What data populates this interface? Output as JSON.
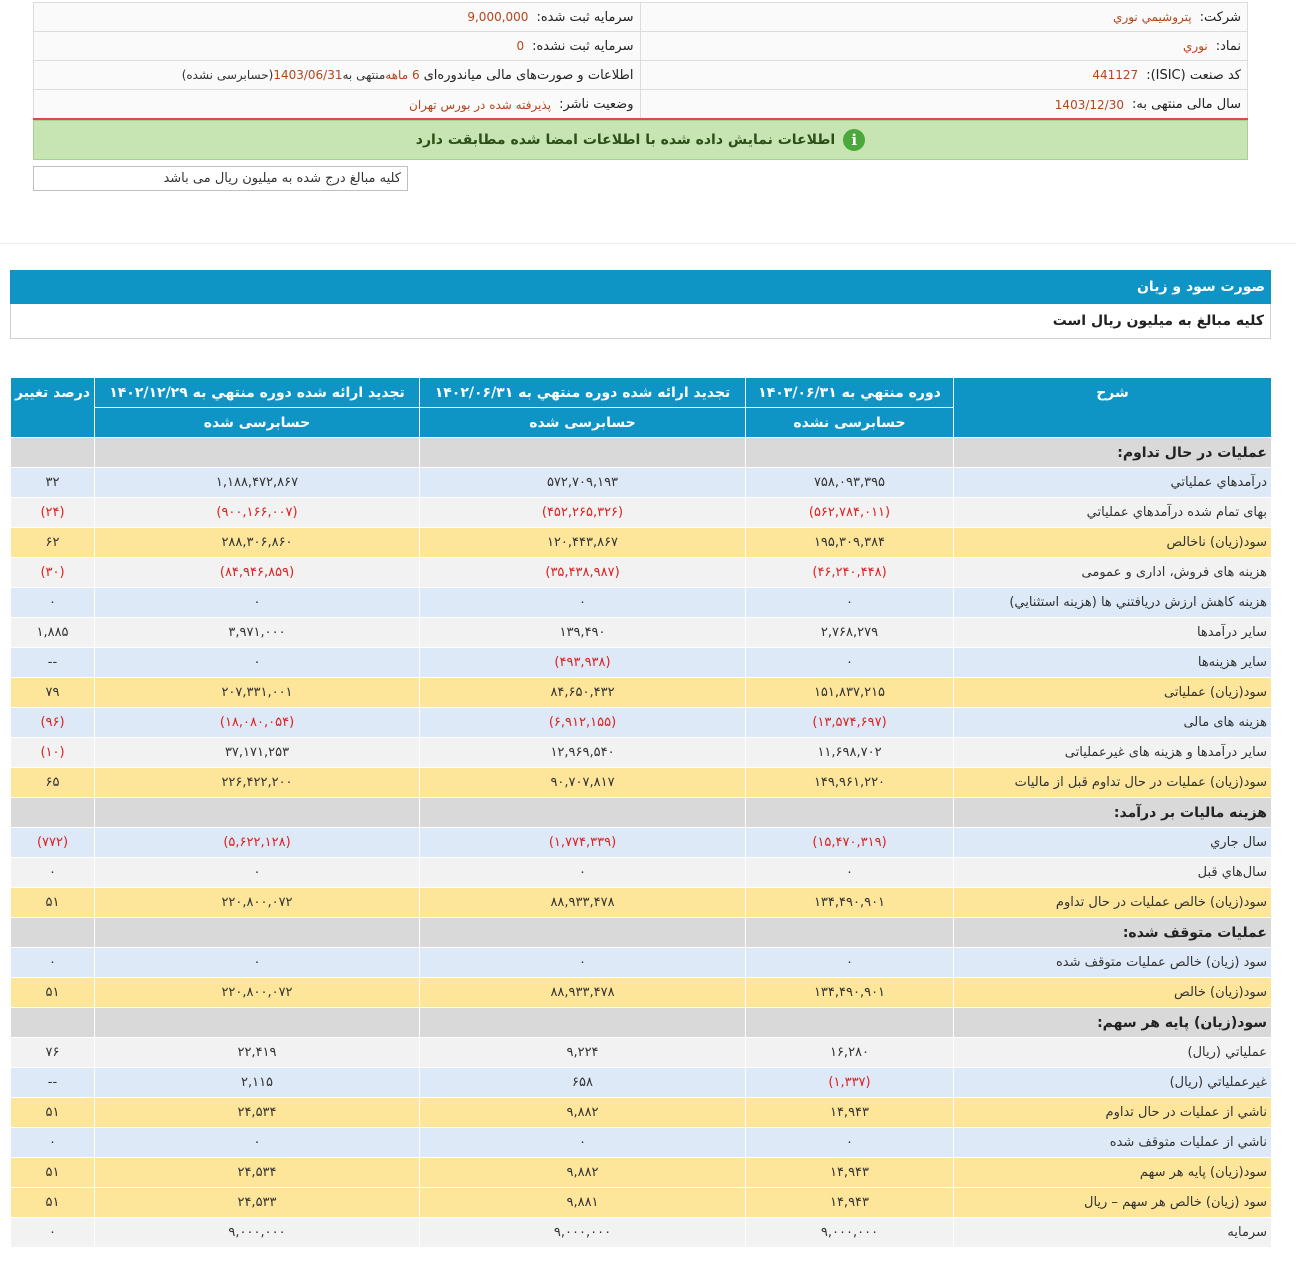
{
  "company": {
    "name_label": "شرکت:",
    "name_value": "پتروشيمي نوري",
    "capital_label": "سرمایه ثبت شده:",
    "capital_value": "9,000,000",
    "symbol_label": "نماد:",
    "symbol_value": "نوري",
    "unreg_capital_label": "سرمایه ثبت نشده:",
    "unreg_capital_value": "0",
    "isic_label": "کد صنعت (ISIC):",
    "isic_value": "441127",
    "report_desc_label": "اطلاعات و صورت‌های مالی میاندوره‌ای",
    "report_period": "6 ماهه",
    "report_end_prefix": "منتهی به",
    "report_end_date": "1403/06/31",
    "report_status": "(حسابرسی نشده)",
    "fiscal_year_label": "سال مالی منتهی به:",
    "fiscal_year_value": "1403/12/30",
    "publisher_status_label": "وضعیت ناشر:",
    "publisher_status_value": "پذیرفته شده در بورس تهران"
  },
  "banner": {
    "text": "اطلاعات نمایش داده شده با اطلاعات امضا شده مطابقت دارد",
    "icon": "info-icon"
  },
  "unit_note": "کلیه مبالغ درج شده به میلیون ریال می باشد",
  "section": {
    "title": "صورت سود و زیان",
    "subtitle": "کلیه مبالغ به میلیون ریال است"
  },
  "table": {
    "headers": {
      "desc": "شرح",
      "p1": "دوره منتهي به ۱۴۰۳/۰۶/۳۱",
      "p2": "تجدید ارائه شده دوره منتهي به ۱۴۰۲/۰۶/۳۱",
      "p3": "تجدید ارائه شده دوره منتهي به ۱۴۰۲/۱۲/۲۹",
      "pct": "درصد تغییر",
      "p1_sub": "حسابرسی نشده",
      "p2_sub": "حسابرسی شده",
      "p3_sub": "حسابرسی شده"
    },
    "rows": [
      {
        "desc": "عملیات در حال تداوم:",
        "p1": "",
        "p2": "",
        "p3": "",
        "pct": "",
        "style": "grey"
      },
      {
        "desc": "درآمدهاي عملياتي",
        "p1": "۷۵۸,۰۹۳,۳۹۵",
        "p2": "۵۷۲,۷۰۹,۱۹۳",
        "p3": "۱,۱۸۸,۴۷۲,۸۶۷",
        "pct": "۳۲",
        "style": "blue"
      },
      {
        "desc": "بهاى تمام شده درآمدهاي عملياتي",
        "p1": "(۵۶۲,۷۸۴,۰۱۱)",
        "p2": "(۴۵۲,۲۶۵,۳۲۶)",
        "p3": "(۹۰۰,۱۶۶,۰۰۷)",
        "pct": "(۲۴)",
        "style": "light",
        "neg": true
      },
      {
        "desc": "سود(زيان) ناخالص",
        "p1": "۱۹۵,۳۰۹,۳۸۴",
        "p2": "۱۲۰,۴۴۳,۸۶۷",
        "p3": "۲۸۸,۳۰۶,۸۶۰",
        "pct": "۶۲",
        "style": "yellow"
      },
      {
        "desc": "هزينه هاى فروش، ادارى و عمومى",
        "p1": "(۴۶,۲۴۰,۴۴۸)",
        "p2": "(۳۵,۴۳۸,۹۸۷)",
        "p3": "(۸۴,۹۴۶,۸۵۹)",
        "pct": "(۳۰)",
        "style": "light",
        "neg": true
      },
      {
        "desc": "هزینه کاهش ارزش دریافتني ها (هزينه استثنايي)",
        "p1": "۰",
        "p2": "۰",
        "p3": "۰",
        "pct": "۰",
        "style": "blue"
      },
      {
        "desc": "ساير درآمدها",
        "p1": "۲,۷۶۸,۲۷۹",
        "p2": "۱۳۹,۴۹۰",
        "p3": "۳,۹۷۱,۰۰۰",
        "pct": "۱,۸۸۵",
        "style": "light"
      },
      {
        "desc": "سایر هزینه‌ها",
        "p1": "۰",
        "p2": "(۴۹۳,۹۳۸)",
        "p3": "۰",
        "pct": "--",
        "style": "blue",
        "neg_cols": [
          "p2"
        ]
      },
      {
        "desc": "سود(زيان) عملياتى",
        "p1": "۱۵۱,۸۳۷,۲۱۵",
        "p2": "۸۴,۶۵۰,۴۳۲",
        "p3": "۲۰۷,۳۳۱,۰۰۱",
        "pct": "۷۹",
        "style": "yellow"
      },
      {
        "desc": "هزينه هاى مالى",
        "p1": "(۱۳,۵۷۴,۶۹۷)",
        "p2": "(۶,۹۱۲,۱۵۵)",
        "p3": "(۱۸,۰۸۰,۰۵۴)",
        "pct": "(۹۶)",
        "style": "blue",
        "neg": true
      },
      {
        "desc": "ساير درآمدها و هزينه هاى غيرعملياتى",
        "p1": "۱۱,۶۹۸,۷۰۲",
        "p2": "۱۲,۹۶۹,۵۴۰",
        "p3": "۳۷,۱۷۱,۲۵۳",
        "pct": "(۱۰)",
        "style": "light",
        "neg_cols": [
          "pct"
        ]
      },
      {
        "desc": "سود(زيان) عمليات در حال تداوم قبل از ماليات",
        "p1": "۱۴۹,۹۶۱,۲۲۰",
        "p2": "۹۰,۷۰۷,۸۱۷",
        "p3": "۲۲۶,۴۲۲,۲۰۰",
        "pct": "۶۵",
        "style": "yellow"
      },
      {
        "desc": "هزينه ماليات بر درآمد:",
        "p1": "",
        "p2": "",
        "p3": "",
        "pct": "",
        "style": "grey"
      },
      {
        "desc": "سال جاري",
        "p1": "(۱۵,۴۷۰,۳۱۹)",
        "p2": "(۱,۷۷۴,۳۳۹)",
        "p3": "(۵,۶۲۲,۱۲۸)",
        "pct": "(۷۷۲)",
        "style": "blue",
        "neg": true
      },
      {
        "desc": "سال‌هاي قبل",
        "p1": "۰",
        "p2": "۰",
        "p3": "۰",
        "pct": "۰",
        "style": "light"
      },
      {
        "desc": "سود(زيان) خالص عمليات در حال تداوم",
        "p1": "۱۳۴,۴۹۰,۹۰۱",
        "p2": "۸۸,۹۳۳,۴۷۸",
        "p3": "۲۲۰,۸۰۰,۰۷۲",
        "pct": "۵۱",
        "style": "yellow"
      },
      {
        "desc": "عمليات متوقف شده:",
        "p1": "",
        "p2": "",
        "p3": "",
        "pct": "",
        "style": "grey"
      },
      {
        "desc": "سود (زيان) خالص عمليات متوقف شده",
        "p1": "۰",
        "p2": "۰",
        "p3": "۰",
        "pct": "۰",
        "style": "blue"
      },
      {
        "desc": "سود(زيان) خالص",
        "p1": "۱۳۴,۴۹۰,۹۰۱",
        "p2": "۸۸,۹۳۳,۴۷۸",
        "p3": "۲۲۰,۸۰۰,۰۷۲",
        "pct": "۵۱",
        "style": "yellow"
      },
      {
        "desc": "سود(زيان) پايه هر سهم:",
        "p1": "",
        "p2": "",
        "p3": "",
        "pct": "",
        "style": "grey"
      },
      {
        "desc": "عملياتي (ريال)",
        "p1": "۱۶,۲۸۰",
        "p2": "۹,۲۲۴",
        "p3": "۲۲,۴۱۹",
        "pct": "۷۶",
        "style": "light"
      },
      {
        "desc": "غيرعملياتي (ريال)",
        "p1": "(۱,۳۳۷)",
        "p2": "۶۵۸",
        "p3": "۲,۱۱۵",
        "pct": "--",
        "style": "blue",
        "neg_cols": [
          "p1"
        ]
      },
      {
        "desc": "ناشي از عمليات در حال تداوم",
        "p1": "۱۴,۹۴۳",
        "p2": "۹,۸۸۲",
        "p3": "۲۴,۵۳۴",
        "pct": "۵۱",
        "style": "yellow"
      },
      {
        "desc": "ناشي از عمليات متوقف شده",
        "p1": "۰",
        "p2": "۰",
        "p3": "۰",
        "pct": "۰",
        "style": "blue"
      },
      {
        "desc": "سود(زيان) پايه هر سهم",
        "p1": "۱۴,۹۴۳",
        "p2": "۹,۸۸۲",
        "p3": "۲۴,۵۳۴",
        "pct": "۵۱",
        "style": "yellow"
      },
      {
        "desc": "سود (زيان) خالص هر سهم – ريال",
        "p1": "۱۴,۹۴۳",
        "p2": "۹,۸۸۱",
        "p3": "۲۴,۵۳۳",
        "pct": "۵۱",
        "style": "yellow"
      },
      {
        "desc": "سرمايه",
        "p1": "۹,۰۰۰,۰۰۰",
        "p2": "۹,۰۰۰,۰۰۰",
        "p3": "۹,۰۰۰,۰۰۰",
        "pct": "۰",
        "style": "light"
      }
    ]
  },
  "colors": {
    "header_blue": "#0e95c6",
    "negative_red": "#e02020",
    "highlight_yellow": "#fde59a",
    "row_blue": "#dde9f6",
    "row_grey": "#f2f2f2",
    "group_grey": "#d9d9d9",
    "banner_green": "#c6e5b3"
  }
}
